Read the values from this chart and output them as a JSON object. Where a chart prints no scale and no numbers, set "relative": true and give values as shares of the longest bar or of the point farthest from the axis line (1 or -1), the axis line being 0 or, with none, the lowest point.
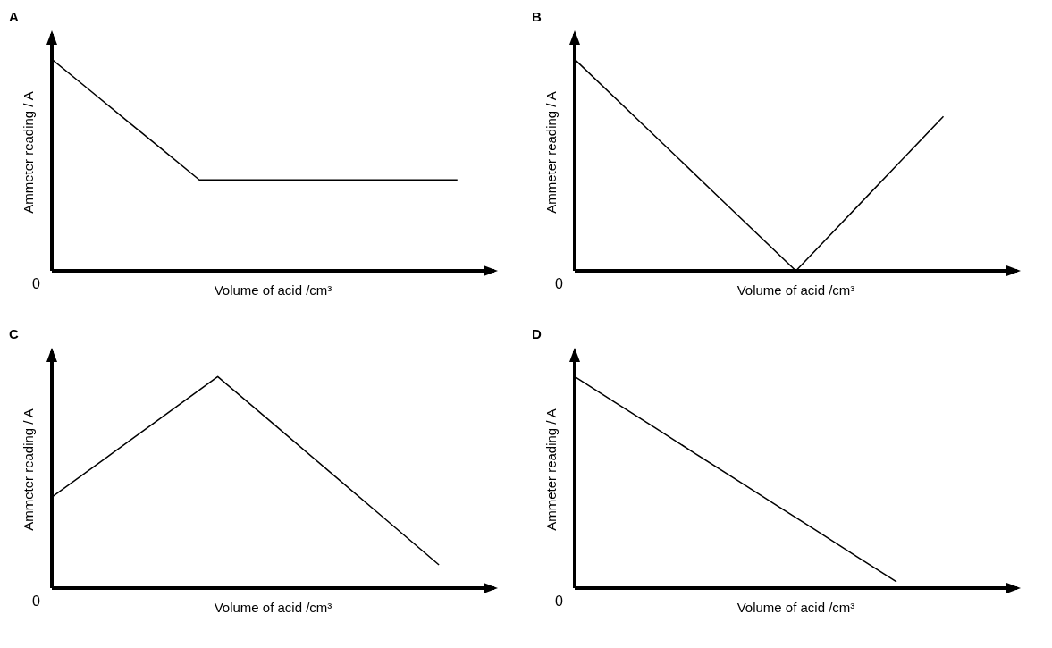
{
  "chart_data": [
    {
      "type": "line",
      "title": "A",
      "xlabel": "Volume of acid /cm³",
      "ylabel": "Ammeter reading / A",
      "relative": true,
      "color": "#000000",
      "annotations": [
        "0"
      ],
      "categories": [
        null,
        null,
        null,
        null,
        null,
        null,
        null,
        null,
        null,
        null,
        null,
        null,
        null
      ],
      "values": [
        1,
        0.858,
        0.715,
        0.573,
        0.43,
        0.43,
        0.43,
        0.43,
        0.43,
        0.43,
        0.43,
        0.43,
        null
      ]
    },
    {
      "type": "line",
      "title": "B",
      "xlabel": "Volume of acid /cm³",
      "ylabel": "Ammeter reading / A",
      "relative": true,
      "color": "#000000",
      "annotations": [
        "0"
      ],
      "categories": [
        null,
        null,
        null,
        null,
        null,
        null,
        null
      ],
      "values": [
        1,
        0.667,
        0.333,
        0,
        0.365,
        0.73,
        null
      ]
    },
    {
      "type": "line",
      "title": "C",
      "xlabel": "Volume of acid /cm³",
      "ylabel": "Ammeter reading / A",
      "relative": true,
      "color": "#000000",
      "annotations": [
        "0"
      ],
      "categories": [
        null,
        null,
        null,
        null,
        null,
        null,
        null,
        null,
        null
      ],
      "values": [
        0.43,
        0.62,
        0.81,
        1,
        0.778,
        0.555,
        0.333,
        0.11,
        null
      ]
    },
    {
      "type": "line",
      "title": "D",
      "xlabel": "Volume of acid /cm³",
      "ylabel": "Ammeter reading / A",
      "relative": true,
      "color": "#000000",
      "annotations": [
        "0"
      ],
      "categories": [
        null,
        null,
        null,
        null,
        null,
        null,
        null,
        null,
        null,
        null,
        null,
        null
      ],
      "values": [
        1,
        0.879,
        0.758,
        0.636,
        0.515,
        0.394,
        0.273,
        0.151,
        0.03,
        null,
        null,
        null
      ]
    }
  ]
}
